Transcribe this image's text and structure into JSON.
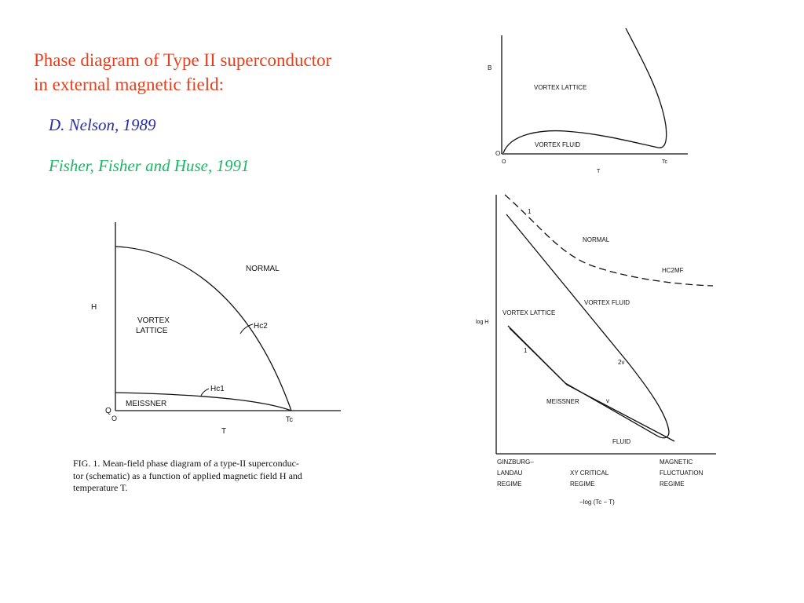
{
  "slide": {
    "title_line1": "Phase diagram of Type II superconductor",
    "title_line2": "in external magnetic field:",
    "citation_nelson": "D. Nelson, 1989",
    "citation_ffh": "Fisher,  Fisher and  Huse,  1991",
    "title_color": "#e8401c",
    "nelson_color": "#2a2aa8",
    "ffh_color": "#1ab864"
  },
  "fig_left": {
    "y_axis": "H",
    "x_axis": "T",
    "origin_q": "Q",
    "origin_o": "O",
    "tc": "Tc",
    "normal": "NORMAL",
    "vortex1": "VORTEX",
    "vortex2": "LATTICE",
    "meissner": "MEISSNER",
    "hc2": "Hc2",
    "hc1": "Hc1",
    "caption1": "FIG. 1.  Mean-field phase diagram of a type-II superconduc-",
    "caption2": "tor (schematic) as a function of applied magnetic field H and",
    "caption3": "temperature T."
  },
  "fig_top_right": {
    "y_axis": "B",
    "x_axis": "T",
    "origin_o_y": "O",
    "origin_o_x": "O",
    "tc": "Tc",
    "lattice": "VORTEX LATTICE",
    "fluid": "VORTEX FLUID"
  },
  "fig_bottom_right": {
    "y_axis": "log H",
    "normal": "NORMAL",
    "hmf": "HC2MF",
    "vortex_fluid": "VORTEX FLUID",
    "vortex_lattice": "VORTEX LATTICE",
    "meissner": "MEISSNER",
    "fluid": "FLUID",
    "label_1a": "1",
    "label_1b": "1",
    "label_2nu": "2ν",
    "label_nu": "ν",
    "reg1_a": "GINZBURG–",
    "reg1_b": "LANDAU",
    "reg1_c": "REGIME",
    "reg2_a": "XY CRITICAL",
    "reg2_b": "REGIME",
    "reg3_a": "MAGNETIC",
    "reg3_b": "FLUCTUATION",
    "reg3_c": "REGIME",
    "x_axis": "−log (Tc − T)"
  }
}
